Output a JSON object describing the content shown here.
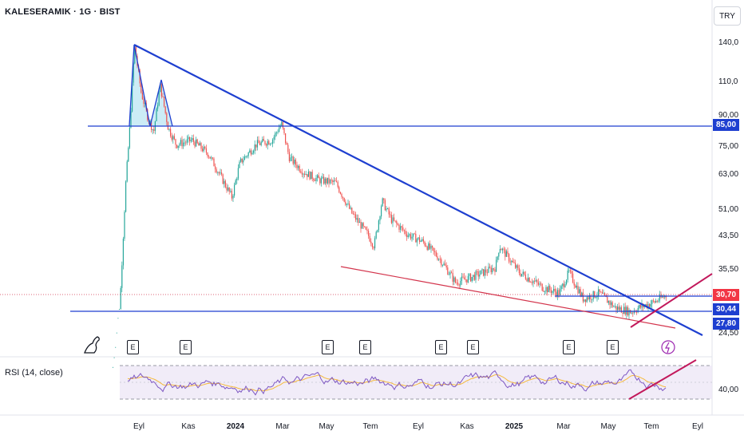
{
  "header": {
    "title": "KALESERAMIK · 1G · BIST",
    "currency": "TRY"
  },
  "colors": {
    "trend_blue": "#1e3fd0",
    "support_red": "#d3344c",
    "candle_up": "#26a69a",
    "candle_down": "#ef5350",
    "rsi_line": "#7e57c2",
    "rsi_ma": "#f5b93b",
    "rsi_band": "#ede7f6",
    "triangle_fill": "#b7e4f2"
  },
  "chart_data": {
    "type": "candlestick",
    "symbol": "KALESERAMIK",
    "interval": "1G",
    "exchange": "BIST",
    "y_scale": "log",
    "y_ticks": [
      "140,0",
      "110,0",
      "90,00",
      "75,00",
      "63,00",
      "51,00",
      "43,50",
      "35,50",
      "24,50"
    ],
    "x_ticks": [
      {
        "label": "Eyl",
        "bold": false
      },
      {
        "label": "Kas",
        "bold": false
      },
      {
        "label": "2024",
        "bold": true
      },
      {
        "label": "Mar",
        "bold": false
      },
      {
        "label": "May",
        "bold": false
      },
      {
        "label": "Tem",
        "bold": false
      },
      {
        "label": "Eyl",
        "bold": false
      },
      {
        "label": "Kas",
        "bold": false
      },
      {
        "label": "2025",
        "bold": true
      },
      {
        "label": "Mar",
        "bold": false
      },
      {
        "label": "May",
        "bold": false
      },
      {
        "label": "Tem",
        "bold": false
      },
      {
        "label": "Eyl",
        "bold": false
      }
    ],
    "price_labels": [
      {
        "value": "85,00",
        "bg": "#1e3fd0"
      },
      {
        "value": "30,70",
        "bg": "#f23645"
      },
      {
        "value": "30,44",
        "bg": "#1e3fd0"
      },
      {
        "value": "27,80",
        "bg": "#1e3fd0"
      }
    ],
    "last_price": 30.7,
    "horizontal_levels": [
      85.0,
      30.44,
      27.8
    ],
    "peak_price": 140.0,
    "events": [
      "E",
      "E",
      "E",
      "E",
      "E",
      "E",
      "E",
      "E"
    ],
    "rsi": {
      "label": "RSI (14, close)",
      "tick": "40,00",
      "upper": 70,
      "lower": 30
    }
  }
}
